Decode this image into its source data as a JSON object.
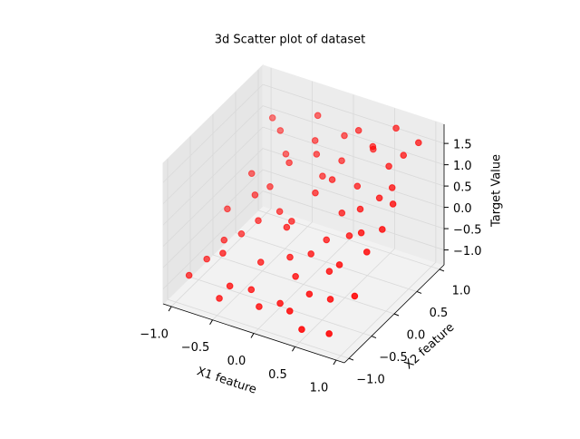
{
  "chart_data": {
    "type": "scatter3d",
    "title": "3d Scatter plot of dataset",
    "xlabel": "X1 feature",
    "ylabel": "X2 feature",
    "zlabel": "Target Value",
    "color": "#ff0000",
    "xlim": [
      -1.1,
      1.1
    ],
    "ylim": [
      -1.1,
      1.1
    ],
    "zlim": [
      -1.35,
      1.95
    ],
    "xticks": [
      {
        "value": -1,
        "label": "−1.0"
      },
      {
        "value": -0.5,
        "label": "−0.5"
      },
      {
        "value": 0,
        "label": "0.0"
      },
      {
        "value": 0.5,
        "label": "0.5"
      },
      {
        "value": 1,
        "label": "1.0"
      }
    ],
    "yticks": [
      {
        "value": -1,
        "label": "−1.0"
      },
      {
        "value": -0.5,
        "label": "−0.5"
      },
      {
        "value": 0,
        "label": "0.0"
      },
      {
        "value": 0.5,
        "label": "0.5"
      },
      {
        "value": 1,
        "label": "1.0"
      }
    ],
    "zticks": [
      {
        "value": -1,
        "label": "−1.0"
      },
      {
        "value": -0.5,
        "label": "−0.5"
      },
      {
        "value": 0,
        "label": "0.0"
      },
      {
        "value": 0.5,
        "label": "0.5"
      },
      {
        "value": 1,
        "label": "1.0"
      },
      {
        "value": 1.5,
        "label": "1.5"
      }
    ],
    "x": [
      -0.95,
      -0.8,
      -0.7,
      -0.6,
      -0.9,
      -0.4,
      -0.3,
      -0.2,
      -0.1,
      0.0,
      0.1,
      0.2,
      0.3,
      0.4,
      0.5,
      0.6,
      0.7,
      0.8,
      0.9,
      0.95,
      -0.85,
      -0.65,
      -0.55,
      -0.45,
      -0.35,
      -0.25,
      -0.15,
      -0.05,
      0.05,
      0.15,
      0.25,
      0.35,
      0.45,
      0.55,
      0.65,
      0.75,
      0.85,
      0.92,
      -0.98,
      -0.75,
      0.6,
      0.3,
      -0.5,
      0.1,
      0.8,
      -0.2,
      0.5,
      -0.6,
      0.0,
      0.4,
      -0.9,
      0.2,
      -0.4,
      0.7,
      0.9,
      -0.1,
      0.35,
      -0.7,
      0.6,
      -0.3
    ],
    "y": [
      -0.8,
      -0.3,
      0.2,
      0.7,
      0.95,
      -0.9,
      -0.4,
      0.1,
      0.6,
      0.9,
      -0.7,
      -0.2,
      0.3,
      0.8,
      -0.95,
      -0.5,
      0.0,
      0.5,
      0.9,
      -0.6,
      0.4,
      -0.6,
      0.0,
      0.5,
      0.95,
      -0.7,
      -0.1,
      0.35,
      0.75,
      -0.45,
      0.05,
      0.55,
      -0.25,
      0.25,
      0.7,
      -0.8,
      -0.15,
      0.3,
      0.1,
      0.85,
      0.95,
      -0.85,
      -0.95,
      0.45,
      0.75,
      0.65,
      0.1,
      0.35,
      -0.3,
      -0.6,
      -0.5,
      0.85,
      0.2,
      0.4,
      0.1,
      -0.8,
      0.9,
      -0.1,
      -0.3,
      0.8
    ],
    "z": [
      -0.9,
      -0.5,
      0.1,
      0.6,
      1.0,
      -0.7,
      -0.6,
      -0.1,
      0.5,
      1.2,
      -1.0,
      -0.3,
      0.2,
      1.3,
      -1.1,
      -0.8,
      0.3,
      0.9,
      1.6,
      -0.4,
      0.3,
      -0.4,
      -0.2,
      0.7,
      1.4,
      -0.9,
      0.0,
      0.4,
      0.8,
      -0.6,
      -0.2,
      0.6,
      -0.5,
      0.5,
      1.1,
      -1.2,
      0.1,
      0.8,
      -0.3,
      0.9,
      1.7,
      -0.9,
      -1.0,
      0.7,
      1.4,
      0.9,
      0.0,
      0.2,
      -0.4,
      -0.7,
      -0.8,
      1.5,
      -0.1,
      0.7,
      0.4,
      -1.1,
      1.1,
      -0.5,
      -0.2,
      1.0
    ]
  }
}
